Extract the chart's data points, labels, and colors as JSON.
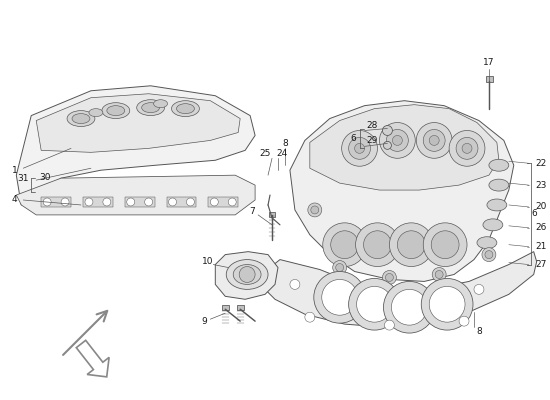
{
  "bg_color": "#ffffff",
  "line_color": "#555555",
  "text_color": "#1a1a1a",
  "figsize": [
    5.5,
    4.0
  ],
  "dpi": 100,
  "lw": 0.7,
  "fs": 6.5
}
